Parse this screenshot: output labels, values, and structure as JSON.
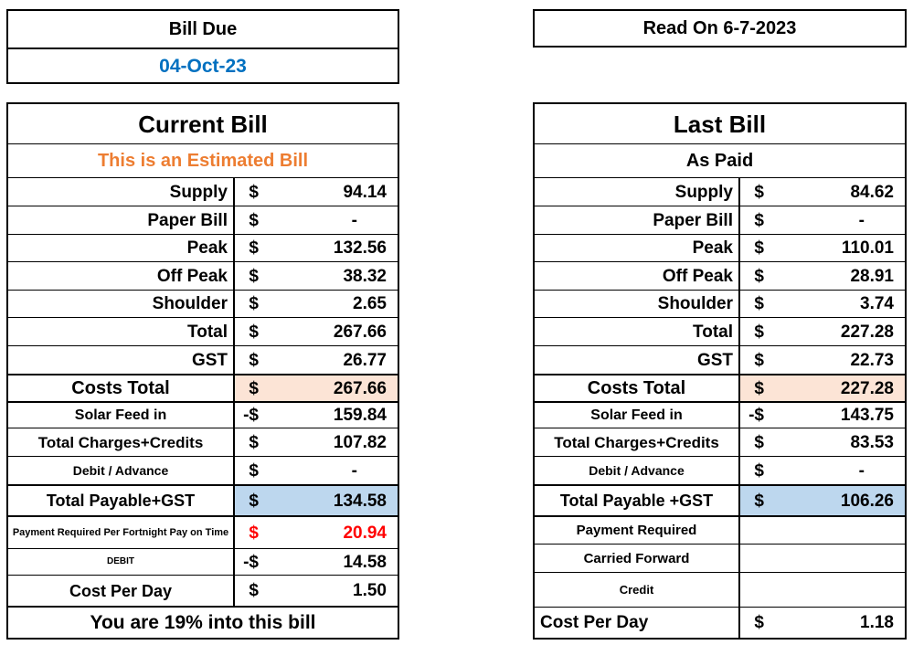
{
  "colors": {
    "date_blue": "#0070C0",
    "estimated_orange": "#ED7D31",
    "payment_red": "#FF0000",
    "costs_total_fill": "#FCE4D6",
    "total_payable_fill": "#BDD7EE"
  },
  "bill_due": {
    "title": "Bill Due",
    "date": "04-Oct-23"
  },
  "read_on": {
    "title": "Read On 6-7-2023"
  },
  "current_bill": {
    "title": "Current Bill",
    "subtitle": "This is an Estimated Bill",
    "rows": [
      {
        "label": "Supply",
        "sign": "$",
        "amount": "94.14"
      },
      {
        "label": "Paper Bill",
        "sign": "$",
        "amount": "-"
      },
      {
        "label": "Peak",
        "sign": "$",
        "amount": "132.56"
      },
      {
        "label": "Off Peak",
        "sign": "$",
        "amount": "38.32"
      },
      {
        "label": "Shoulder",
        "sign": "$",
        "amount": "2.65"
      },
      {
        "label": "Total",
        "sign": "$",
        "amount": "267.66"
      },
      {
        "label": "GST",
        "sign": "$",
        "amount": "26.77"
      },
      {
        "label": "Costs Total",
        "sign": "$",
        "amount": "267.66"
      },
      {
        "label": "Solar Feed in",
        "sign": "-$",
        "amount": "159.84"
      },
      {
        "label": "Total Charges+Credits",
        "sign": "$",
        "amount": "107.82"
      },
      {
        "label": "Debit / Advance",
        "sign": "$",
        "amount": "-"
      },
      {
        "label": "Total Payable+GST",
        "sign": "$",
        "amount": "134.58"
      },
      {
        "label": "Payment Required Per Fortnight Pay on Time",
        "sign": "$",
        "amount": "20.94"
      },
      {
        "label": "DEBIT",
        "sign": "-$",
        "amount": "14.58"
      },
      {
        "label": "Cost Per Day",
        "sign": "$",
        "amount": "1.50"
      }
    ],
    "footer": "You are 19% into this bill"
  },
  "last_bill": {
    "title": "Last Bill",
    "subtitle": "As Paid",
    "rows": [
      {
        "label": "Supply",
        "sign": "$",
        "amount": "84.62"
      },
      {
        "label": "Paper Bill",
        "sign": "$",
        "amount": "-"
      },
      {
        "label": "Peak",
        "sign": "$",
        "amount": "110.01"
      },
      {
        "label": "Off Peak",
        "sign": "$",
        "amount": "28.91"
      },
      {
        "label": "Shoulder",
        "sign": "$",
        "amount": "3.74"
      },
      {
        "label": "Total",
        "sign": "$",
        "amount": "227.28"
      },
      {
        "label": "GST",
        "sign": "$",
        "amount": "22.73"
      },
      {
        "label": "Costs Total",
        "sign": "$",
        "amount": "227.28"
      },
      {
        "label": "Solar Feed in",
        "sign": "-$",
        "amount": "143.75"
      },
      {
        "label": "Total Charges+Credits",
        "sign": "$",
        "amount": "83.53"
      },
      {
        "label": "Debit / Advance",
        "sign": "$",
        "amount": "-"
      },
      {
        "label": "Total Payable +GST",
        "sign": "$",
        "amount": "106.26"
      },
      {
        "label": "Payment Required",
        "sign": "",
        "amount": ""
      },
      {
        "label": "Carried Forward",
        "sign": "",
        "amount": ""
      },
      {
        "label": "Credit",
        "sign": "",
        "amount": ""
      },
      {
        "label": "Cost Per Day",
        "sign": "$",
        "amount": "1.18"
      }
    ]
  }
}
